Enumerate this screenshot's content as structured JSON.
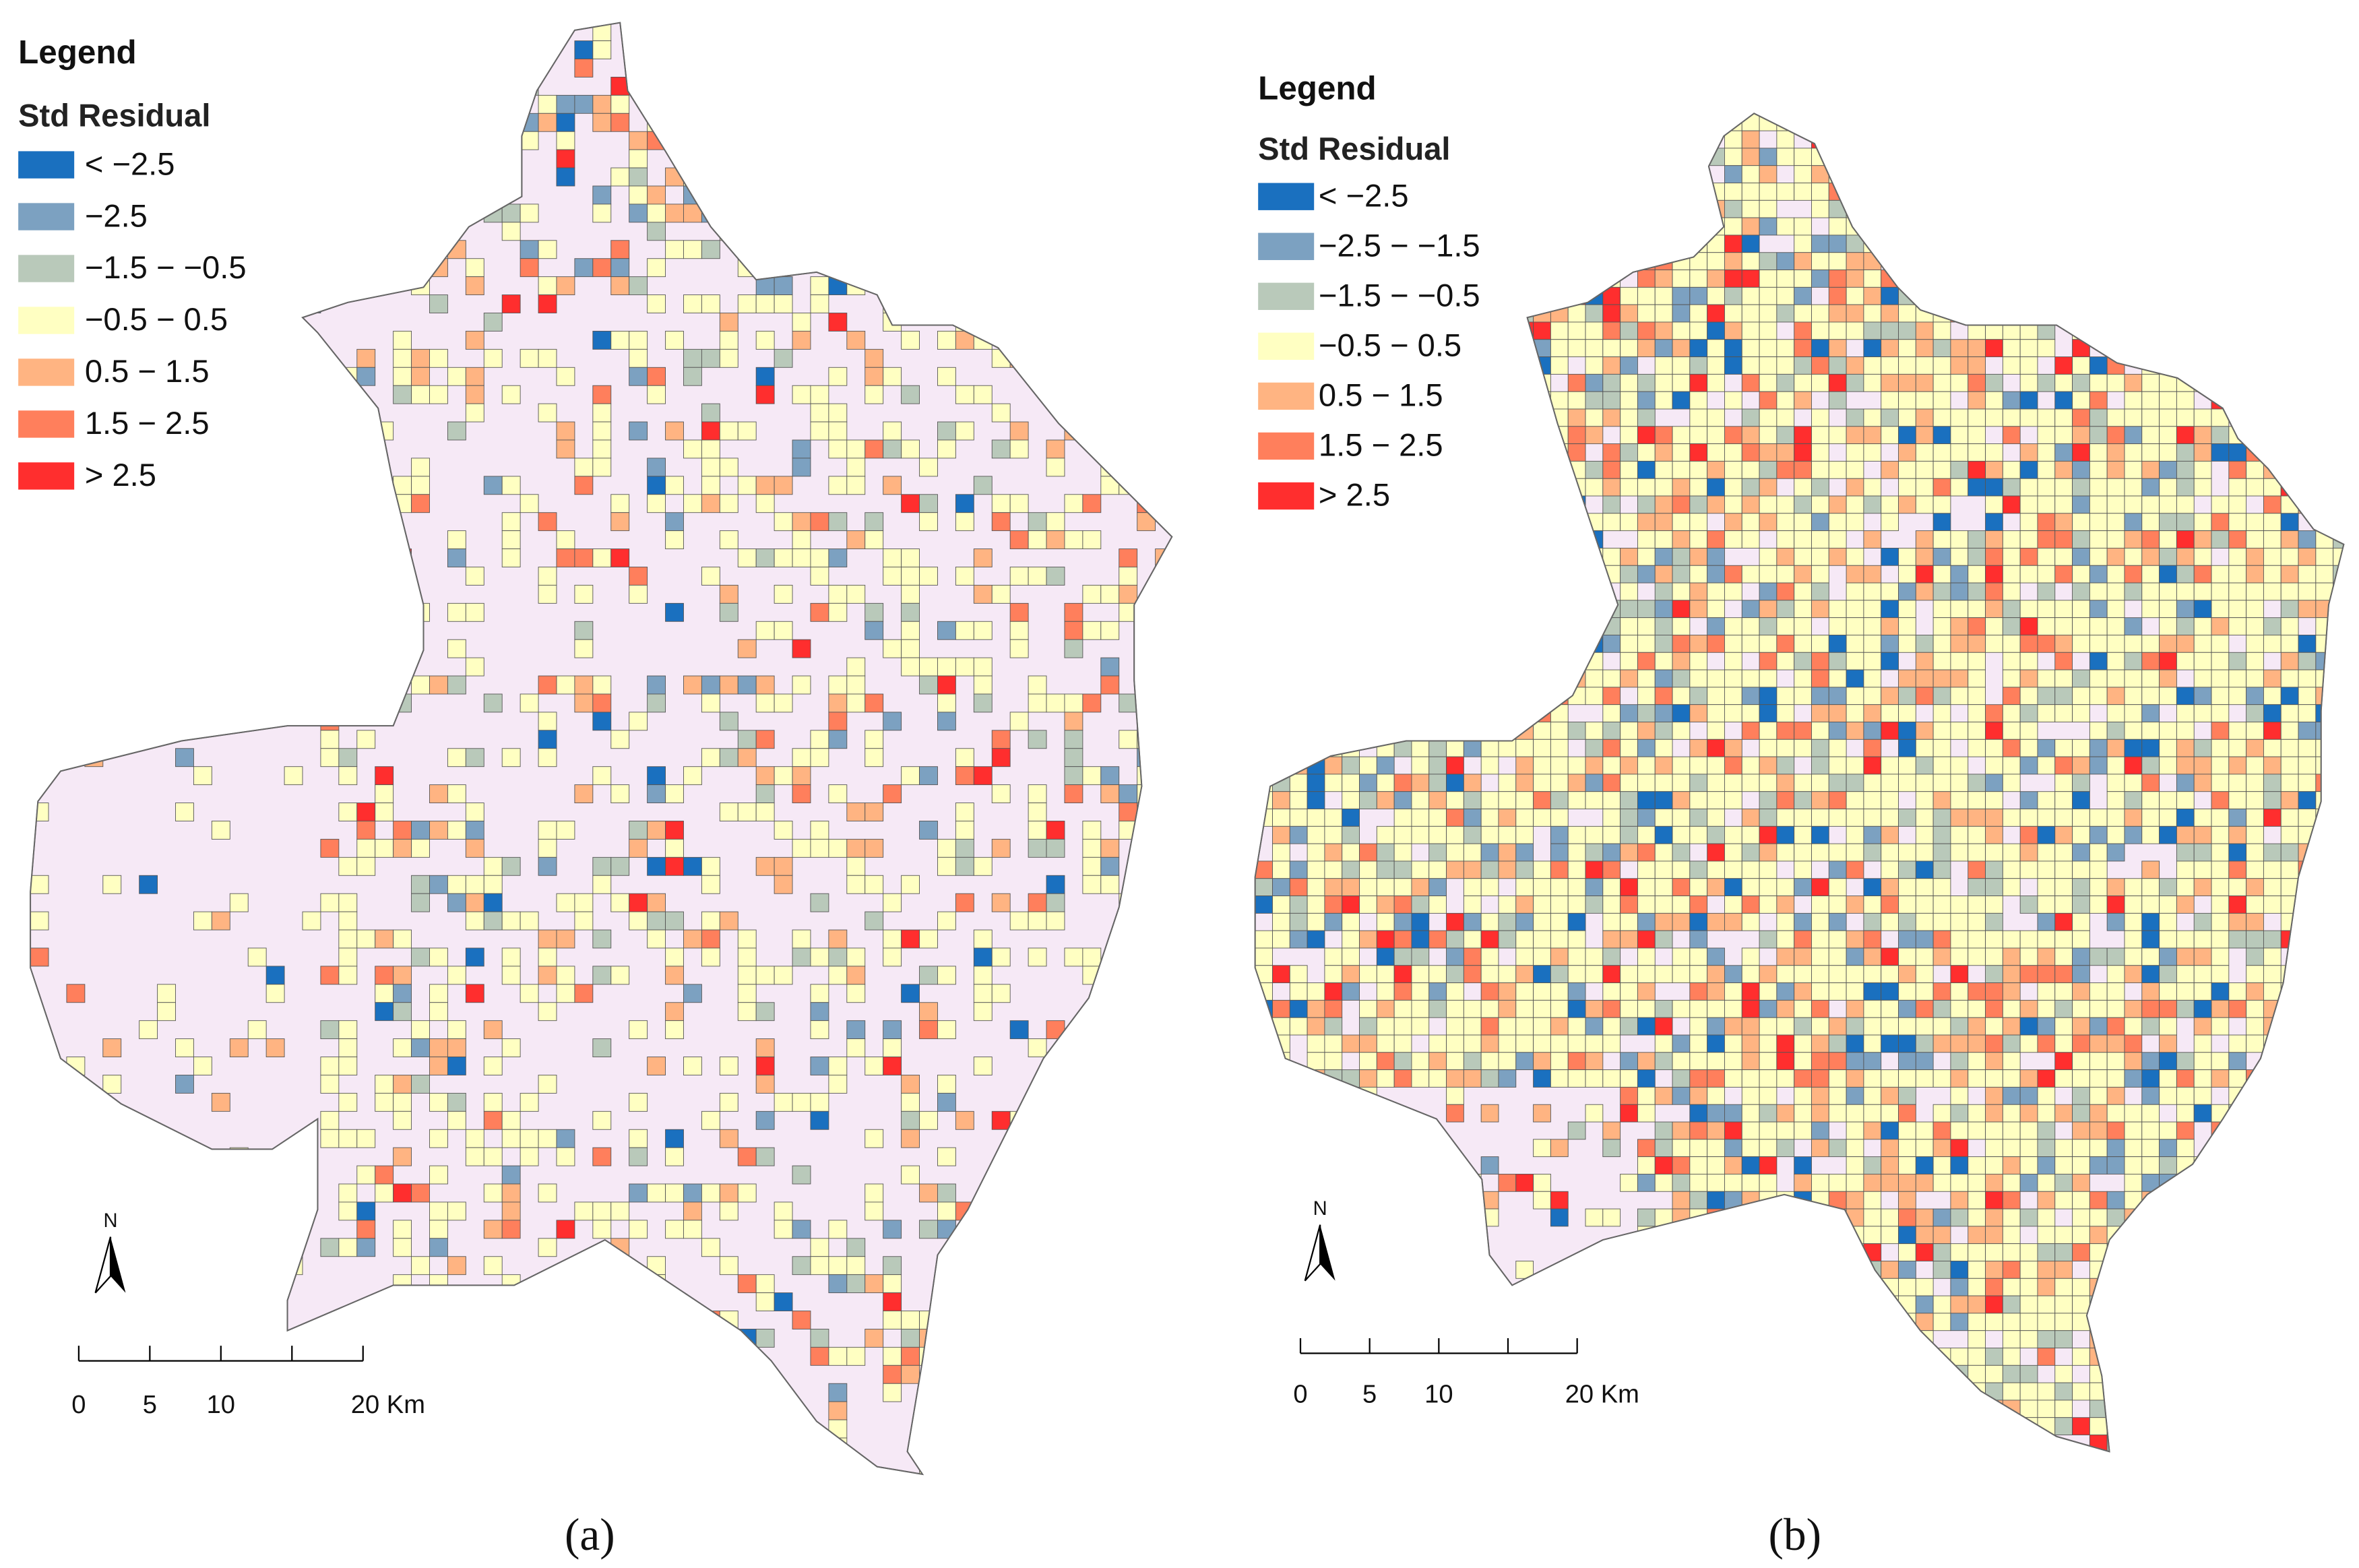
{
  "panels": [
    {
      "legend": {
        "title": "Legend",
        "subtitle": "Std Residual",
        "classes": [
          {
            "label": "< −2.5",
            "color": "#1a70bf"
          },
          {
            "label": "−2.5",
            "color": "#7ca1c1"
          },
          {
            "label": "−1.5 − −0.5",
            "color": "#b9c9ba"
          },
          {
            "label": "−0.5 − 0.5",
            "color": "#ffffc2"
          },
          {
            "label": "0.5 − 1.5",
            "color": "#ffb482"
          },
          {
            "label": "1.5 − 2.5",
            "color": "#ff7f5c"
          },
          {
            "label": "> 2.5",
            "color": "#ff2e2e"
          }
        ]
      },
      "north": "N",
      "scale": [
        "0",
        "5",
        "10",
        "20 Km"
      ],
      "caption": "(a)"
    },
    {
      "legend": {
        "title": "Legend",
        "subtitle": "Std Residual",
        "classes": [
          {
            "label": "< −2.5",
            "color": "#1a70bf"
          },
          {
            "label": "−2.5 − −1.5",
            "color": "#7ca1c1"
          },
          {
            "label": "−1.5 − −0.5",
            "color": "#b9c9ba"
          },
          {
            "label": "−0.5 − 0.5",
            "color": "#ffffc2"
          },
          {
            "label": "0.5 − 1.5",
            "color": "#ffb482"
          },
          {
            "label": "1.5 − 2.5",
            "color": "#ff7f5c"
          },
          {
            "label": "> 2.5",
            "color": "#ff2e2e"
          }
        ]
      },
      "north": "N",
      "scale": [
        "0",
        "5",
        "10",
        "20 Km"
      ],
      "caption": "(b)"
    }
  ]
}
